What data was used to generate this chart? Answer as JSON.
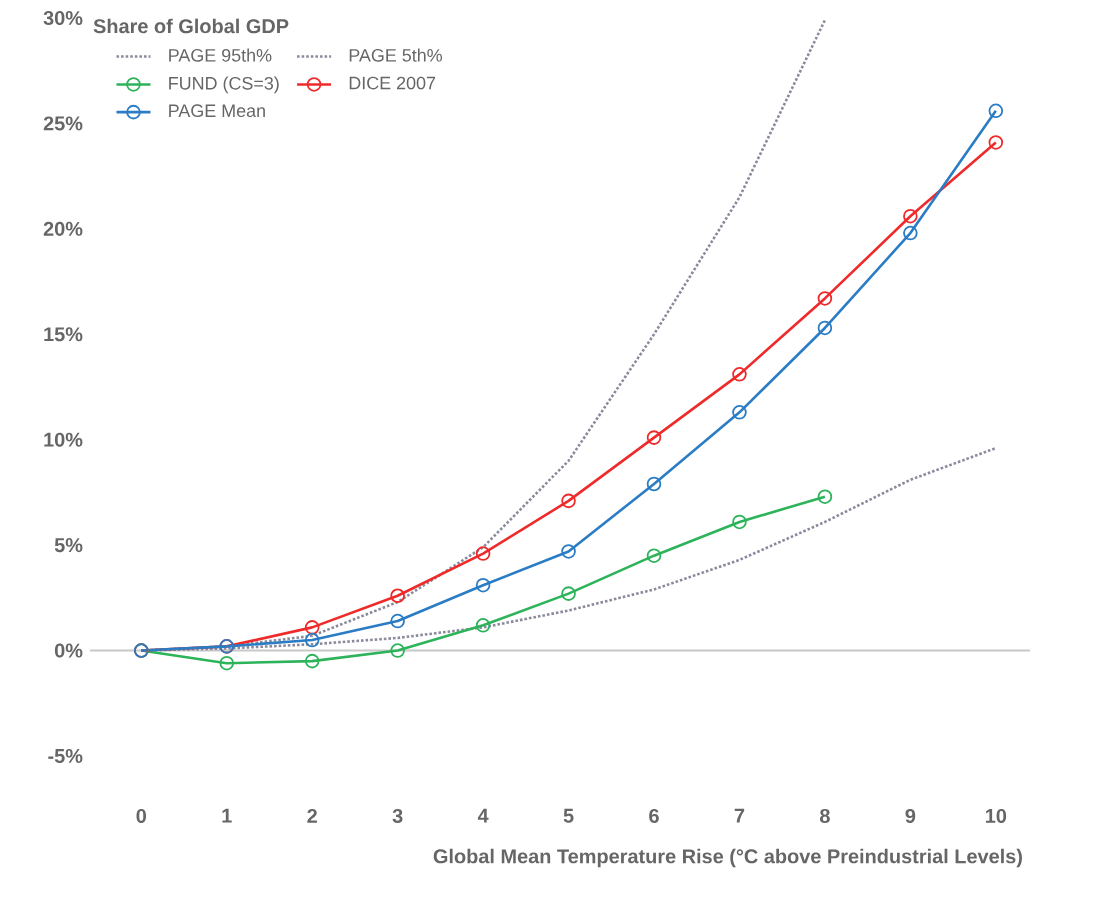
{
  "chart_data": {
    "type": "line",
    "ylabel": "Share of Global GDP",
    "xlabel": "Global Mean Temperature Rise (°C above Preindustrial Levels)",
    "x": [
      0,
      1,
      2,
      3,
      4,
      5,
      6,
      7,
      8,
      9,
      10
    ],
    "xlim": [
      -0.6,
      10.4
    ],
    "xticks": [
      0,
      1,
      2,
      3,
      4,
      5,
      6,
      7,
      8,
      9,
      10
    ],
    "ylim": [
      -5,
      30
    ],
    "yticks": [
      {
        "value": -5,
        "label": "-5%"
      },
      {
        "value": 0,
        "label": "0%"
      },
      {
        "value": 5,
        "label": "5%"
      },
      {
        "value": 10,
        "label": "10%"
      },
      {
        "value": 15,
        "label": "15%"
      },
      {
        "value": 20,
        "label": "20%"
      },
      {
        "value": 25,
        "label": "25%"
      },
      {
        "value": 30,
        "label": "30%"
      }
    ],
    "grid": false,
    "legend": "top left",
    "marker": "circle",
    "ref_lines": [
      {
        "axis": "y",
        "value": 0,
        "color": "#c8c8c8"
      }
    ],
    "series": [
      {
        "name": "PAGE 95th%",
        "color": "#8a8a9c",
        "line_style": "dotted",
        "marker": "none",
        "values": [
          0,
          0.2,
          0.7,
          2.3,
          4.9,
          9,
          15,
          21.5,
          29.9,
          null,
          null
        ]
      },
      {
        "name": "PAGE 5th%",
        "color": "#8a8a9c",
        "line_style": "dotted",
        "marker": "none",
        "values": [
          0,
          0.1,
          0.3,
          0.6,
          1.1,
          1.9,
          2.9,
          4.3,
          6.1,
          8.1,
          9.6
        ]
      },
      {
        "name": "FUND (CS=3)",
        "color": "#2db35a",
        "values": [
          0,
          -0.6,
          -0.5,
          0,
          1.2,
          2.7,
          4.5,
          6.1,
          7.3,
          null,
          null
        ]
      },
      {
        "name": "DICE 2007",
        "color": "#ee2a2a",
        "values": [
          0,
          0.2,
          1.1,
          2.6,
          4.6,
          7.1,
          10.1,
          13.1,
          16.7,
          20.6,
          24.1
        ]
      },
      {
        "name": "PAGE Mean",
        "color": "#2a7cc4",
        "values": [
          0,
          0.2,
          0.5,
          1.4,
          3.1,
          4.7,
          7.9,
          11.3,
          15.3,
          19.8,
          25.6
        ]
      }
    ]
  }
}
